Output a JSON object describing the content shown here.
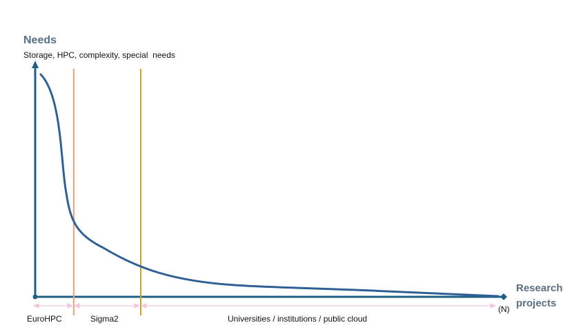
{
  "diagram": {
    "y_axis": {
      "title": "Needs",
      "subtitle": "Storage, HPC, complexity, special  needs"
    },
    "x_axis": {
      "title_line1": "Research",
      "title_line2": "projects",
      "end_label": "(N)"
    },
    "segments": [
      {
        "label": "EuroHPC"
      },
      {
        "label": "Sigma2"
      },
      {
        "label": "Universities / institutions / public cloud"
      }
    ],
    "colors": {
      "axis": "#1f5f84",
      "curve": "#2e5f95",
      "divider_eurohpc_sigma2": "#f4a07c",
      "divider_sigma2_univ": "#c9a227",
      "segment_arrows": "#f3c6dd",
      "heading": "#5b6f82"
    }
  }
}
